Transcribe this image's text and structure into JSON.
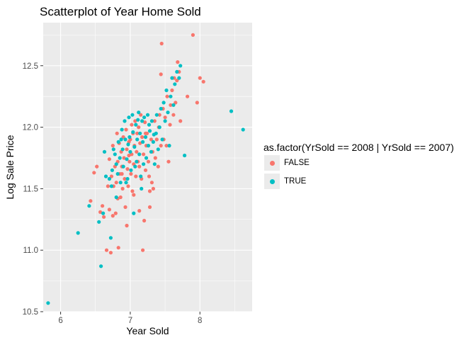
{
  "chart_data": {
    "type": "scatter",
    "title": "Scatterplot of Year Home Sold",
    "xlabel": "Year Sold",
    "ylabel": "Log Sale Price",
    "xlim": [
      5.75,
      8.75
    ],
    "ylim": [
      10.5,
      12.85
    ],
    "x_ticks": [
      6,
      7,
      8
    ],
    "y_ticks": [
      10.5,
      11.0,
      11.5,
      12.0,
      12.5
    ],
    "x_tick_labels": [
      "6",
      "7",
      "8"
    ],
    "y_tick_labels": [
      "10.5",
      "11.0",
      "11.5",
      "12.0",
      "12.5"
    ],
    "grid": true,
    "legend": {
      "title": "as.factor(YrSold == 2008 | YrSold == 2007)",
      "placement": "right"
    },
    "series": [
      {
        "name": "FALSE",
        "color": "#F8766D",
        "points": [
          [
            6.43,
            11.4
          ],
          [
            6.48,
            11.63
          ],
          [
            6.52,
            11.68
          ],
          [
            6.57,
            11.31
          ],
          [
            6.6,
            11.36
          ],
          [
            6.62,
            11.27
          ],
          [
            6.66,
            11.0
          ],
          [
            6.68,
            11.52
          ],
          [
            6.7,
            11.74
          ],
          [
            6.7,
            11.33
          ],
          [
            6.72,
            10.98
          ],
          [
            6.73,
            11.6
          ],
          [
            6.75,
            11.85
          ],
          [
            6.76,
            11.52
          ],
          [
            6.78,
            11.68
          ],
          [
            6.79,
            11.3
          ],
          [
            6.8,
            11.55
          ],
          [
            6.81,
            11.95
          ],
          [
            6.82,
            11.72
          ],
          [
            6.83,
            11.02
          ],
          [
            6.84,
            11.87
          ],
          [
            6.85,
            11.62
          ],
          [
            6.86,
            11.43
          ],
          [
            6.87,
            11.8
          ],
          [
            6.88,
            11.68
          ],
          [
            6.89,
            11.5
          ],
          [
            6.9,
            11.92
          ],
          [
            6.91,
            11.75
          ],
          [
            6.92,
            11.58
          ],
          [
            6.93,
            11.35
          ],
          [
            6.94,
            11.98
          ],
          [
            6.95,
            11.82
          ],
          [
            6.96,
            11.66
          ],
          [
            6.97,
            11.52
          ],
          [
            6.98,
            11.88
          ],
          [
            6.99,
            11.72
          ],
          [
            7.0,
            11.9
          ],
          [
            7.01,
            11.62
          ],
          [
            7.02,
            11.78
          ],
          [
            7.03,
            11.48
          ],
          [
            7.04,
            11.95
          ],
          [
            7.05,
            11.7
          ],
          [
            7.06,
            11.85
          ],
          [
            7.07,
            12.05
          ],
          [
            7.08,
            11.6
          ],
          [
            7.09,
            11.8
          ],
          [
            7.1,
            11.95
          ],
          [
            7.11,
            11.72
          ],
          [
            7.12,
            12.0
          ],
          [
            7.13,
            11.68
          ],
          [
            7.14,
            11.87
          ],
          [
            7.15,
            12.1
          ],
          [
            7.16,
            11.58
          ],
          [
            7.17,
            11.92
          ],
          [
            7.18,
            11.0
          ],
          [
            7.19,
            11.78
          ],
          [
            7.2,
            11.24
          ],
          [
            7.21,
            12.04
          ],
          [
            7.22,
            11.65
          ],
          [
            7.23,
            11.85
          ],
          [
            7.24,
            11.95
          ],
          [
            7.26,
            11.72
          ],
          [
            7.27,
            11.6
          ],
          [
            7.28,
            11.48
          ],
          [
            7.3,
            11.9
          ],
          [
            7.31,
            11.55
          ],
          [
            7.32,
            11.8
          ],
          [
            7.33,
            11.5
          ],
          [
            7.35,
            12.05
          ],
          [
            7.36,
            11.75
          ],
          [
            7.38,
            11.9
          ],
          [
            7.4,
            11.68
          ],
          [
            7.41,
            12.0
          ],
          [
            7.42,
            12.1
          ],
          [
            7.44,
            11.85
          ],
          [
            7.45,
            12.68
          ],
          [
            7.47,
            12.15
          ],
          [
            7.48,
            11.9
          ],
          [
            7.5,
            12.08
          ],
          [
            7.52,
            11.85
          ],
          [
            7.53,
            12.25
          ],
          [
            7.55,
            11.72
          ],
          [
            7.57,
            12.02
          ],
          [
            7.58,
            12.18
          ],
          [
            7.6,
            12.3
          ],
          [
            7.62,
            12.1
          ],
          [
            7.63,
            12.4
          ],
          [
            7.65,
            12.2
          ],
          [
            7.67,
            12.38
          ],
          [
            7.68,
            12.53
          ],
          [
            7.7,
            12.45
          ],
          [
            7.72,
            12.05
          ],
          [
            7.82,
            12.25
          ],
          [
            7.9,
            12.75
          ],
          [
            7.96,
            12.2
          ],
          [
            8.0,
            12.4
          ],
          [
            8.05,
            12.37
          ],
          [
            7.44,
            12.43
          ],
          [
            7.28,
            11.35
          ],
          [
            6.95,
            11.2
          ],
          [
            7.05,
            11.45
          ],
          [
            6.75,
            11.28
          ],
          [
            7.13,
            11.32
          ],
          [
            6.88,
            11.62
          ],
          [
            7.02,
            12.02
          ],
          [
            7.22,
            11.95
          ],
          [
            6.82,
            11.42
          ],
          [
            6.98,
            11.77
          ]
        ]
      },
      {
        "name": "TRUE",
        "color": "#00BFC4",
        "points": [
          [
            5.82,
            10.57
          ],
          [
            6.25,
            11.14
          ],
          [
            6.41,
            11.36
          ],
          [
            6.55,
            11.23
          ],
          [
            6.58,
            10.87
          ],
          [
            6.61,
            11.3
          ],
          [
            6.63,
            11.8
          ],
          [
            6.65,
            11.6
          ],
          [
            6.7,
            11.58
          ],
          [
            6.72,
            11.1
          ],
          [
            6.74,
            11.65
          ],
          [
            6.76,
            11.82
          ],
          [
            6.78,
            11.78
          ],
          [
            6.8,
            11.7
          ],
          [
            6.82,
            11.62
          ],
          [
            6.83,
            11.88
          ],
          [
            6.85,
            11.75
          ],
          [
            6.86,
            11.55
          ],
          [
            6.88,
            11.98
          ],
          [
            6.89,
            11.82
          ],
          [
            6.9,
            11.68
          ],
          [
            6.92,
            12.05
          ],
          [
            6.93,
            11.9
          ],
          [
            6.95,
            11.74
          ],
          [
            6.96,
            11.58
          ],
          [
            6.98,
            12.08
          ],
          [
            6.99,
            11.92
          ],
          [
            7.0,
            11.8
          ],
          [
            7.01,
            11.65
          ],
          [
            7.03,
            12.1
          ],
          [
            7.04,
            11.96
          ],
          [
            7.05,
            11.3
          ],
          [
            7.06,
            11.84
          ],
          [
            7.08,
            12.02
          ],
          [
            7.09,
            11.72
          ],
          [
            7.1,
            11.9
          ],
          [
            7.12,
            12.12
          ],
          [
            7.13,
            11.78
          ],
          [
            7.14,
            11.95
          ],
          [
            7.15,
            11.6
          ],
          [
            7.17,
            12.05
          ],
          [
            7.18,
            11.88
          ],
          [
            7.19,
            11.7
          ],
          [
            7.2,
            12.08
          ],
          [
            7.22,
            11.92
          ],
          [
            7.23,
            11.75
          ],
          [
            7.25,
            12.1
          ],
          [
            7.26,
            11.85
          ],
          [
            7.28,
            11.97
          ],
          [
            7.3,
            11.8
          ],
          [
            7.31,
            12.05
          ],
          [
            7.33,
            11.88
          ],
          [
            7.35,
            11.7
          ],
          [
            7.37,
            11.95
          ],
          [
            7.38,
            12.1
          ],
          [
            7.4,
            11.82
          ],
          [
            7.42,
            12.0
          ],
          [
            7.44,
            12.15
          ],
          [
            7.46,
            11.9
          ],
          [
            7.48,
            12.2
          ],
          [
            7.5,
            12.05
          ],
          [
            7.52,
            12.3
          ],
          [
            7.54,
            12.12
          ],
          [
            7.56,
            11.85
          ],
          [
            7.58,
            12.25
          ],
          [
            7.6,
            12.4
          ],
          [
            7.62,
            12.18
          ],
          [
            7.64,
            12.35
          ],
          [
            7.67,
            12.45
          ],
          [
            7.7,
            12.4
          ],
          [
            7.72,
            12.5
          ],
          [
            7.78,
            11.77
          ],
          [
            8.45,
            12.13
          ],
          [
            8.62,
            11.98
          ],
          [
            6.8,
            11.43
          ],
          [
            6.94,
            11.55
          ],
          [
            7.07,
            11.68
          ],
          [
            7.16,
            11.5
          ],
          [
            6.87,
            11.9
          ],
          [
            7.27,
            12.02
          ],
          [
            6.97,
            11.86
          ],
          [
            7.11,
            12.06
          ],
          [
            7.34,
            11.94
          ],
          [
            6.73,
            11.52
          ]
        ]
      }
    ]
  }
}
